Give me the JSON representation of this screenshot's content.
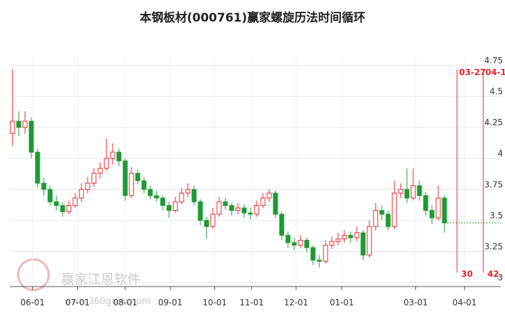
{
  "chart_data": {
    "type": "candlestick",
    "title": "本钢板材(000761)赢家螺旋历法时间循环",
    "watermark": "赢家江恩软件",
    "watermark_url": "www.360gann.com",
    "up_color": "#e8262a",
    "down_color": "#1d9a34",
    "grid": true,
    "ohlc": [
      [
        4.2,
        4.72,
        4.1,
        4.3
      ],
      [
        4.3,
        4.38,
        4.18,
        4.25
      ],
      [
        4.25,
        4.38,
        4.2,
        4.3
      ],
      [
        4.3,
        4.33,
        4.0,
        4.05
      ],
      [
        4.05,
        4.08,
        3.76,
        3.8
      ],
      [
        3.8,
        3.84,
        3.7,
        3.75
      ],
      [
        3.75,
        3.78,
        3.62,
        3.65
      ],
      [
        3.65,
        3.7,
        3.58,
        3.62
      ],
      [
        3.62,
        3.65,
        3.53,
        3.57
      ],
      [
        3.57,
        3.66,
        3.55,
        3.62
      ],
      [
        3.62,
        3.72,
        3.6,
        3.68
      ],
      [
        3.68,
        3.8,
        3.65,
        3.75
      ],
      [
        3.75,
        3.85,
        3.72,
        3.8
      ],
      [
        3.8,
        3.92,
        3.77,
        3.88
      ],
      [
        3.88,
        3.97,
        3.84,
        3.92
      ],
      [
        3.92,
        4.16,
        3.9,
        4.0
      ],
      [
        4.0,
        4.12,
        3.95,
        4.05
      ],
      [
        4.05,
        4.08,
        3.94,
        3.98
      ],
      [
        3.98,
        4.0,
        3.66,
        3.7
      ],
      [
        3.7,
        3.93,
        3.68,
        3.88
      ],
      [
        3.88,
        3.91,
        3.79,
        3.82
      ],
      [
        3.82,
        3.85,
        3.72,
        3.75
      ],
      [
        3.75,
        3.78,
        3.67,
        3.7
      ],
      [
        3.7,
        3.74,
        3.65,
        3.68
      ],
      [
        3.68,
        3.7,
        3.58,
        3.62
      ],
      [
        3.62,
        3.65,
        3.52,
        3.58
      ],
      [
        3.58,
        3.69,
        3.56,
        3.65
      ],
      [
        3.65,
        3.76,
        3.63,
        3.72
      ],
      [
        3.72,
        3.8,
        3.69,
        3.75
      ],
      [
        3.75,
        3.78,
        3.62,
        3.65
      ],
      [
        3.65,
        3.67,
        3.46,
        3.5
      ],
      [
        3.5,
        3.53,
        3.35,
        3.45
      ],
      [
        3.45,
        3.6,
        3.43,
        3.55
      ],
      [
        3.55,
        3.69,
        3.53,
        3.65
      ],
      [
        3.65,
        3.68,
        3.59,
        3.62
      ],
      [
        3.62,
        3.64,
        3.54,
        3.58
      ],
      [
        3.58,
        3.64,
        3.55,
        3.6
      ],
      [
        3.6,
        3.63,
        3.52,
        3.56
      ],
      [
        3.56,
        3.6,
        3.51,
        3.55
      ],
      [
        3.55,
        3.66,
        3.53,
        3.62
      ],
      [
        3.62,
        3.72,
        3.6,
        3.68
      ],
      [
        3.68,
        3.75,
        3.65,
        3.72
      ],
      [
        3.72,
        3.74,
        3.52,
        3.55
      ],
      [
        3.55,
        3.57,
        3.34,
        3.38
      ],
      [
        3.38,
        3.41,
        3.28,
        3.32
      ],
      [
        3.32,
        3.36,
        3.26,
        3.3
      ],
      [
        3.3,
        3.38,
        3.28,
        3.34
      ],
      [
        3.34,
        3.36,
        3.24,
        3.28
      ],
      [
        3.28,
        3.3,
        3.14,
        3.18
      ],
      [
        3.18,
        3.22,
        3.12,
        3.17
      ],
      [
        3.17,
        3.34,
        3.15,
        3.3
      ],
      [
        3.3,
        3.37,
        3.27,
        3.33
      ],
      [
        3.33,
        3.4,
        3.3,
        3.35
      ],
      [
        3.35,
        3.42,
        3.32,
        3.38
      ],
      [
        3.38,
        3.41,
        3.32,
        3.36
      ],
      [
        3.36,
        3.45,
        3.33,
        3.4
      ],
      [
        3.4,
        3.42,
        3.18,
        3.22
      ],
      [
        3.22,
        3.5,
        3.2,
        3.45
      ],
      [
        3.45,
        3.64,
        3.42,
        3.58
      ],
      [
        3.58,
        3.62,
        3.5,
        3.55
      ],
      [
        3.55,
        3.58,
        3.42,
        3.45
      ],
      [
        3.45,
        3.82,
        3.43,
        3.72
      ],
      [
        3.72,
        3.8,
        3.68,
        3.75
      ],
      [
        3.75,
        3.92,
        3.64,
        3.68
      ],
      [
        3.68,
        3.92,
        3.66,
        3.78
      ],
      [
        3.78,
        3.82,
        3.66,
        3.7
      ],
      [
        3.7,
        3.73,
        3.54,
        3.58
      ],
      [
        3.58,
        3.62,
        3.47,
        3.52
      ],
      [
        3.52,
        3.78,
        3.5,
        3.68
      ],
      [
        3.68,
        3.7,
        3.4,
        3.48
      ]
    ],
    "xlim": [
      0,
      78
    ],
    "xticks": [
      {
        "value": 3.2,
        "label": "06-01"
      },
      {
        "value": 10.4,
        "label": "07-01"
      },
      {
        "value": 18,
        "label": "08-01"
      },
      {
        "value": 25.2,
        "label": "09-01"
      },
      {
        "value": 32.3,
        "label": "10-01"
      },
      {
        "value": 38.2,
        "label": "11-01"
      },
      {
        "value": 45.3,
        "label": "12-01"
      },
      {
        "value": 52.6,
        "label": "01-01"
      },
      {
        "value": 64.4,
        "label": "03-01"
      },
      {
        "value": 72.2,
        "label": "04-01"
      }
    ],
    "ylim": [
      3,
      4.75
    ],
    "yticks": [
      3,
      3.25,
      3.5,
      3.75,
      4,
      4.25,
      4.5,
      4.75
    ],
    "cycle_lines": [
      {
        "x": 71,
        "date": "03-27",
        "count": 30
      },
      {
        "x": 75.2,
        "date": "04-1",
        "count": 42
      }
    ],
    "cycle_color": "#e8262a"
  }
}
